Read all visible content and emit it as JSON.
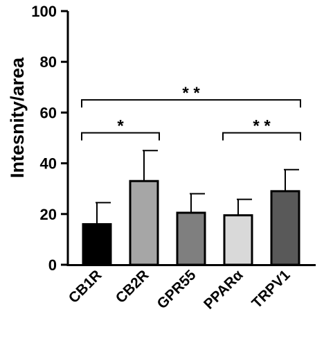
{
  "chart_data": {
    "type": "bar",
    "title": "",
    "xlabel": "",
    "ylabel": "Intesnity/area",
    "ylim": [
      0,
      100
    ],
    "yticks": [
      0,
      20,
      40,
      60,
      80,
      100
    ],
    "grid": false,
    "categories": [
      "CB1R",
      "CB2R",
      "GPR55",
      "PPARα",
      "TRPV1"
    ],
    "values": [
      16,
      33,
      20.5,
      19.5,
      29
    ],
    "errors": [
      8.5,
      12,
      7.5,
      6.3,
      8.5
    ],
    "colors": [
      "#000000",
      "#a6a6a6",
      "#7f7f7f",
      "#d9d9d9",
      "#595959"
    ],
    "significance": [
      {
        "from": 0,
        "to": 1,
        "y": 52,
        "label": "*"
      },
      {
        "from": 3,
        "to": 4,
        "y": 52,
        "label": "* *"
      },
      {
        "from": 0,
        "to": 4,
        "y": 65,
        "label": "* *"
      }
    ]
  }
}
